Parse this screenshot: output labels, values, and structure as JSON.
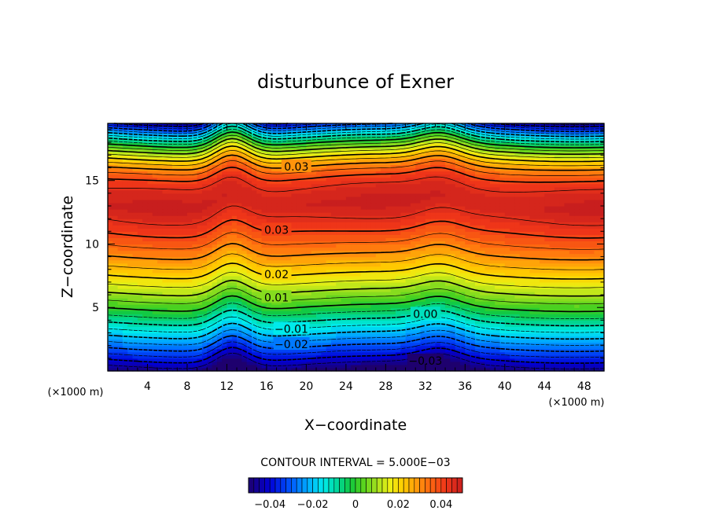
{
  "chart_data": {
    "type": "contour",
    "title": "disturbunce of Exner",
    "xlabel": "X−coordinate",
    "ylabel": "Z−coordinate",
    "x_unit_left": "(×1000 m)",
    "x_unit_right": "(×1000 m)",
    "xlim": [
      0,
      50
    ],
    "ylim": [
      0,
      19.5
    ],
    "x_ticks": [
      4,
      8,
      12,
      16,
      20,
      24,
      28,
      32,
      36,
      40,
      44,
      48
    ],
    "x_tick_labels": [
      "4",
      "8",
      "12",
      "16",
      "20",
      "24",
      "28",
      "32",
      "36",
      "40",
      "44",
      "48"
    ],
    "y_ticks": [
      5,
      10,
      15
    ],
    "y_tick_labels": [
      "5",
      "10",
      "15"
    ],
    "contour_interval_text": "CONTOUR INTERVAL = 5.000E−03",
    "contour_interval": 0.005,
    "contour_labels": [
      {
        "text": "0.03",
        "x": 19.0,
        "z": 16.1
      },
      {
        "text": "0.03",
        "x": 17.0,
        "z": 11.1
      },
      {
        "text": "0.02",
        "x": 17.0,
        "z": 7.6
      },
      {
        "text": "0.01",
        "x": 17.0,
        "z": 5.8
      },
      {
        "text": "0.00",
        "x": 32.0,
        "z": 4.5
      },
      {
        "text": "−0.01",
        "x": 18.5,
        "z": 3.3
      },
      {
        "text": "−0.02",
        "x": 18.5,
        "z": 2.1
      },
      {
        "text": "−0.03",
        "x": 32.0,
        "z": 0.8
      }
    ],
    "colorbar": {
      "range": [
        -0.05,
        0.05
      ],
      "tick_values": [
        -0.04,
        -0.02,
        0,
        0.02,
        0.04
      ],
      "tick_labels": [
        "−0.04",
        "−0.02",
        "0",
        "0.02",
        "0.04"
      ]
    }
  }
}
